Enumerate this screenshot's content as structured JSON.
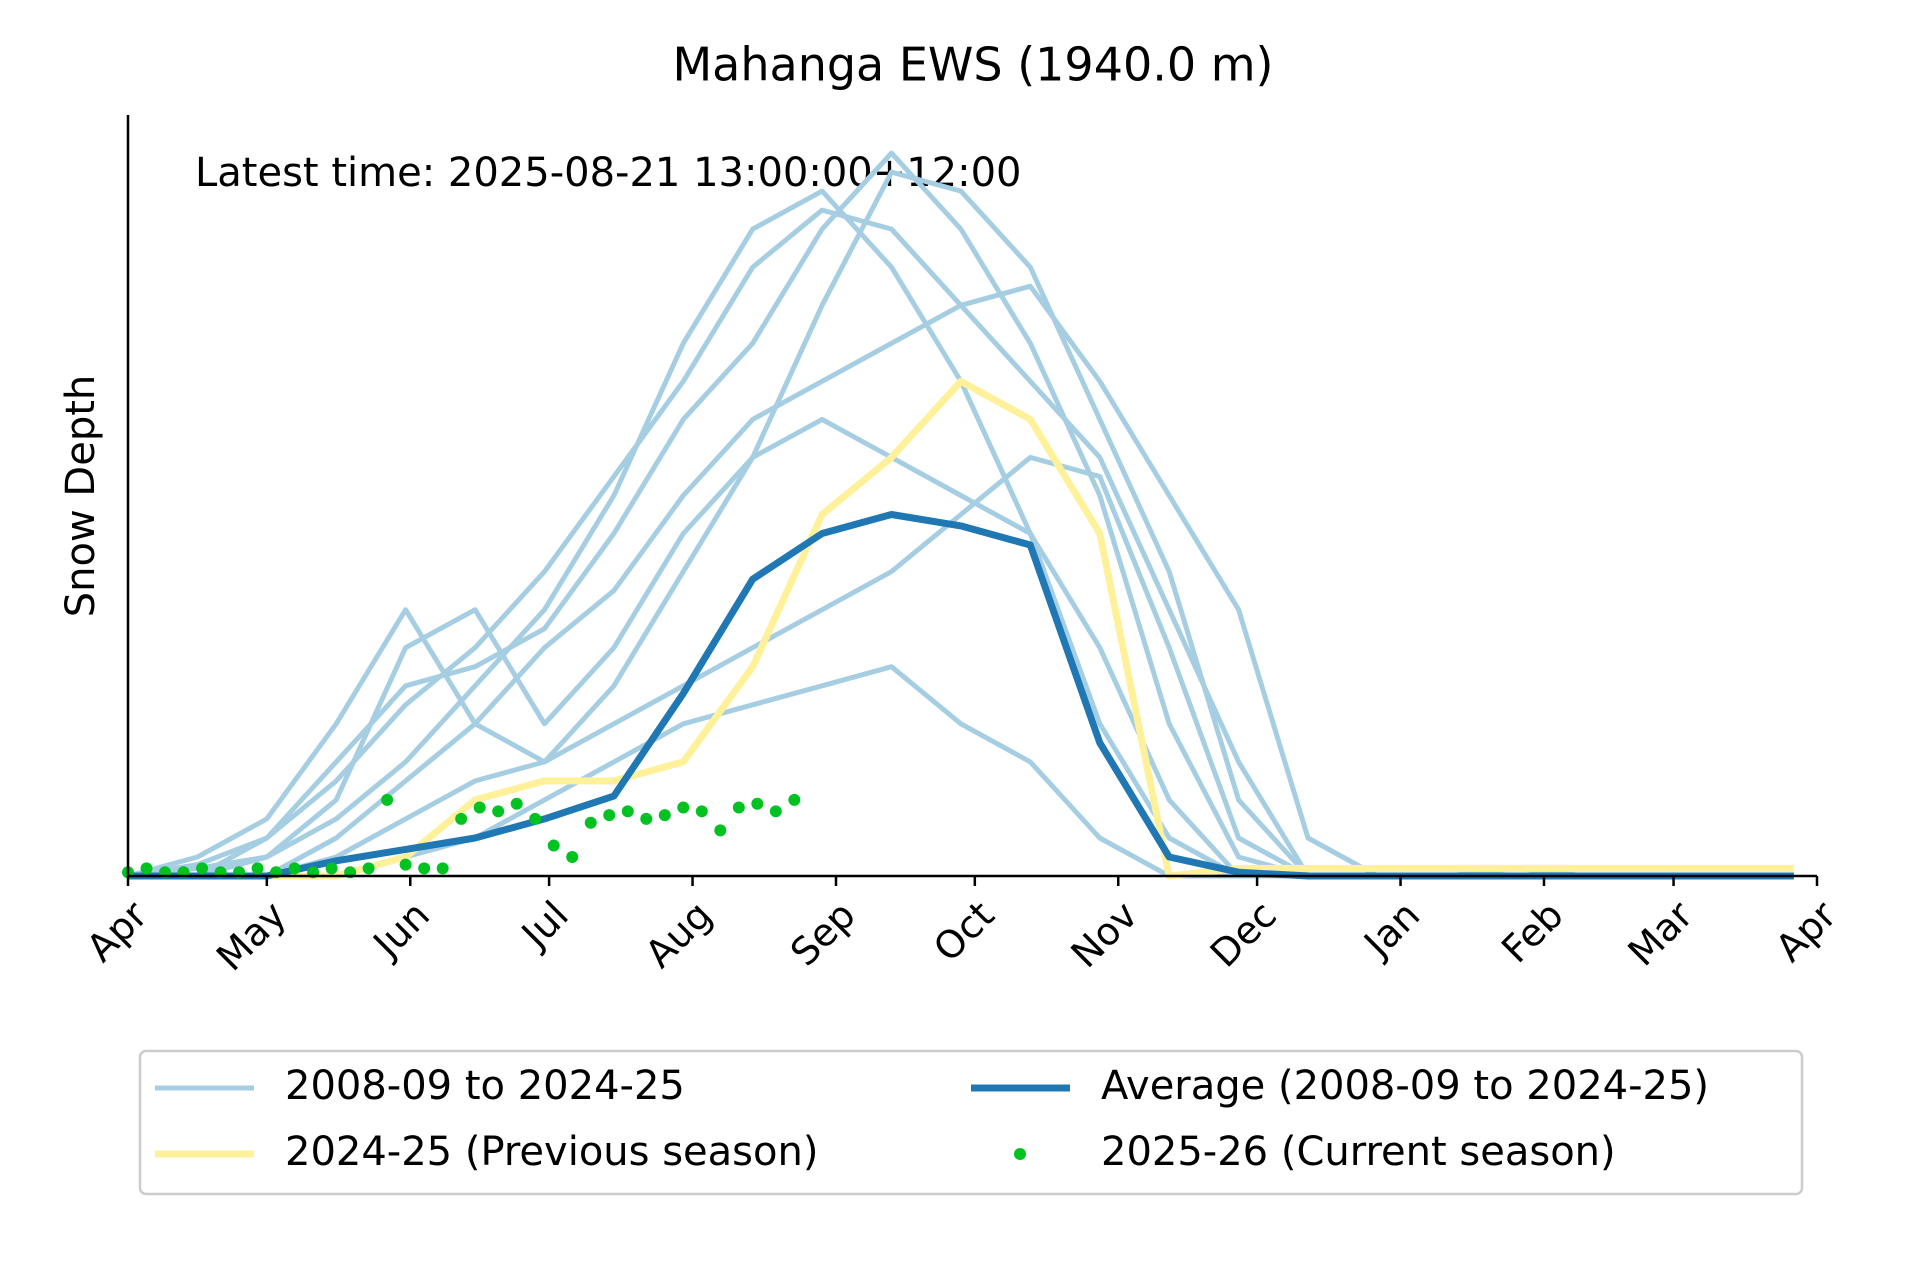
{
  "chart_data": {
    "type": "line",
    "title": "Mahanga EWS (1940.0 m)",
    "annotation": "Latest time: 2025-08-21 13:00:00+12:00",
    "y_label": "Snow Depth",
    "xlim": [
      0,
      365
    ],
    "ylim": [
      0,
      200
    ],
    "xticks": [
      {
        "value": 0,
        "label": "Apr"
      },
      {
        "value": 30,
        "label": "May"
      },
      {
        "value": 61,
        "label": "Jun"
      },
      {
        "value": 91,
        "label": "Jul"
      },
      {
        "value": 122,
        "label": "Aug"
      },
      {
        "value": 153,
        "label": "Sep"
      },
      {
        "value": 183,
        "label": "Oct"
      },
      {
        "value": 214,
        "label": "Nov"
      },
      {
        "value": 244,
        "label": "Dec"
      },
      {
        "value": 275,
        "label": "Jan"
      },
      {
        "value": 306,
        "label": "Feb"
      },
      {
        "value": 334,
        "label": "Mar"
      },
      {
        "value": 365,
        "label": "Apr"
      }
    ],
    "legend": "lower center",
    "series": [
      {
        "name": "2008-09 to 2024-25",
        "color": "#a6cee3",
        "x": [
          0,
          15,
          30,
          45,
          60,
          75,
          90,
          105,
          120,
          135,
          150,
          165,
          180,
          195,
          210,
          225,
          240,
          255,
          270,
          285,
          300,
          315,
          330,
          345,
          360
        ],
        "values": [
          [
            0,
            2,
            5,
            20,
            60,
            70,
            40,
            60,
            90,
            110,
            150,
            185,
            180,
            160,
            120,
            80,
            20,
            0,
            0,
            0,
            0,
            0,
            0,
            0,
            0
          ],
          [
            0,
            0,
            10,
            30,
            50,
            55,
            65,
            90,
            120,
            140,
            170,
            190,
            170,
            140,
            100,
            40,
            5,
            0,
            0,
            0,
            0,
            0,
            0,
            0,
            0
          ],
          [
            0,
            0,
            0,
            10,
            25,
            40,
            60,
            75,
            100,
            120,
            130,
            140,
            150,
            155,
            130,
            100,
            70,
            10,
            0,
            0,
            0,
            0,
            0,
            0,
            0
          ],
          [
            0,
            5,
            15,
            40,
            70,
            40,
            30,
            50,
            80,
            110,
            120,
            110,
            100,
            90,
            60,
            20,
            0,
            0,
            0,
            0,
            2,
            0,
            0,
            0,
            0
          ],
          [
            0,
            0,
            0,
            5,
            15,
            25,
            30,
            40,
            50,
            60,
            70,
            80,
            95,
            110,
            105,
            60,
            10,
            0,
            0,
            0,
            0,
            0,
            0,
            0,
            0
          ],
          [
            0,
            0,
            5,
            15,
            30,
            50,
            70,
            100,
            140,
            170,
            180,
            160,
            130,
            90,
            40,
            10,
            0,
            0,
            0,
            0,
            0,
            0,
            0,
            0,
            0
          ],
          [
            0,
            0,
            0,
            0,
            5,
            10,
            20,
            30,
            40,
            45,
            50,
            55,
            40,
            30,
            10,
            0,
            0,
            0,
            0,
            0,
            0,
            0,
            0,
            0,
            0
          ],
          [
            0,
            3,
            10,
            25,
            45,
            60,
            80,
            105,
            130,
            160,
            175,
            170,
            150,
            130,
            110,
            70,
            30,
            0,
            0,
            0,
            0,
            0,
            0,
            0,
            0
          ]
        ]
      },
      {
        "name": "2024-25 (Previous season)",
        "color": "#fff09a",
        "x": [
          0,
          15,
          30,
          45,
          60,
          75,
          90,
          105,
          120,
          135,
          150,
          165,
          180,
          195,
          210,
          225,
          240,
          255,
          270,
          285,
          300,
          315,
          330,
          345,
          360
        ],
        "values": [
          0,
          0,
          0,
          0,
          5,
          20,
          25,
          25,
          30,
          55,
          95,
          110,
          130,
          120,
          90,
          0,
          2,
          2,
          2,
          2,
          2,
          2,
          2,
          2,
          2
        ]
      },
      {
        "name": "Average (2008-09 to 2024-25)",
        "color": "#1f78b4",
        "x": [
          0,
          15,
          30,
          45,
          60,
          75,
          90,
          105,
          120,
          135,
          150,
          165,
          180,
          195,
          210,
          225,
          240,
          255,
          270,
          285,
          300,
          315,
          330,
          345,
          360
        ],
        "values": [
          0,
          0,
          0,
          4,
          7,
          10,
          15,
          21,
          48,
          78,
          90,
          95,
          92,
          87,
          35,
          5,
          1,
          0,
          0,
          0,
          0,
          0,
          0,
          0,
          0
        ]
      },
      {
        "name": "2025-26 (Current season)",
        "color": "#00c322",
        "marker": "dot",
        "x": [
          0,
          4,
          8,
          12,
          16,
          20,
          24,
          28,
          32,
          36,
          40,
          44,
          48,
          52,
          56,
          60,
          64,
          68,
          72,
          76,
          80,
          84,
          88,
          92,
          96,
          100,
          104,
          108,
          112,
          116,
          120,
          124,
          128,
          132,
          136,
          140,
          144
        ],
        "values": [
          1,
          2,
          1,
          1,
          2,
          1,
          1,
          2,
          1,
          2,
          1,
          2,
          1,
          2,
          20,
          3,
          2,
          2,
          15,
          18,
          17,
          19,
          15,
          8,
          5,
          14,
          16,
          17,
          15,
          16,
          18,
          17,
          12,
          18,
          19,
          17,
          20
        ]
      }
    ]
  }
}
